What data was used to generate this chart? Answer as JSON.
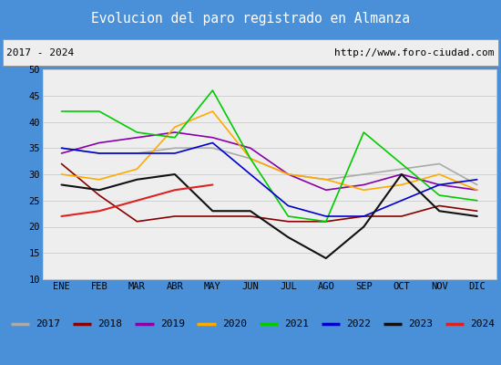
{
  "title": "Evolucion del paro registrado en Almanza",
  "subtitle_left": "2017 - 2024",
  "subtitle_right": "http://www.foro-ciudad.com",
  "title_bg_color": "#4a90d9",
  "title_text_color": "#ffffff",
  "subtitle_bg_color": "#eeeeee",
  "plot_bg_color": "#eeeeee",
  "months": [
    "ENE",
    "FEB",
    "MAR",
    "ABR",
    "MAY",
    "JUN",
    "JUL",
    "AGO",
    "SEP",
    "OCT",
    "NOV",
    "DIC"
  ],
  "ylim": [
    10,
    50
  ],
  "yticks": [
    10,
    15,
    20,
    25,
    30,
    35,
    40,
    45,
    50
  ],
  "series": {
    "2017": {
      "color": "#aaaaaa",
      "linewidth": 1.2,
      "values": [
        35,
        34,
        34,
        35,
        35,
        33,
        30,
        29,
        30,
        31,
        32,
        28
      ]
    },
    "2018": {
      "color": "#880000",
      "linewidth": 1.2,
      "values": [
        32,
        26,
        21,
        22,
        22,
        22,
        21,
        21,
        22,
        22,
        24,
        23
      ]
    },
    "2019": {
      "color": "#8800aa",
      "linewidth": 1.2,
      "values": [
        34,
        36,
        37,
        38,
        37,
        35,
        30,
        27,
        28,
        30,
        28,
        27
      ]
    },
    "2020": {
      "color": "#ffaa00",
      "linewidth": 1.2,
      "values": [
        30,
        29,
        31,
        39,
        42,
        33,
        30,
        29,
        27,
        28,
        30,
        27
      ]
    },
    "2021": {
      "color": "#00cc00",
      "linewidth": 1.2,
      "values": [
        42,
        42,
        38,
        37,
        46,
        33,
        22,
        21,
        38,
        32,
        26,
        25
      ]
    },
    "2022": {
      "color": "#0000cc",
      "linewidth": 1.2,
      "values": [
        35,
        34,
        34,
        34,
        36,
        30,
        24,
        22,
        22,
        25,
        28,
        29
      ]
    },
    "2023": {
      "color": "#111111",
      "linewidth": 1.5,
      "values": [
        28,
        27,
        29,
        30,
        23,
        23,
        18,
        14,
        20,
        30,
        23,
        22
      ]
    },
    "2024": {
      "color": "#dd2222",
      "linewidth": 1.5,
      "values": [
        22,
        23,
        25,
        27,
        28,
        null,
        null,
        null,
        null,
        null,
        null,
        null
      ]
    }
  },
  "legend_order": [
    "2017",
    "2018",
    "2019",
    "2020",
    "2021",
    "2022",
    "2023",
    "2024"
  ]
}
